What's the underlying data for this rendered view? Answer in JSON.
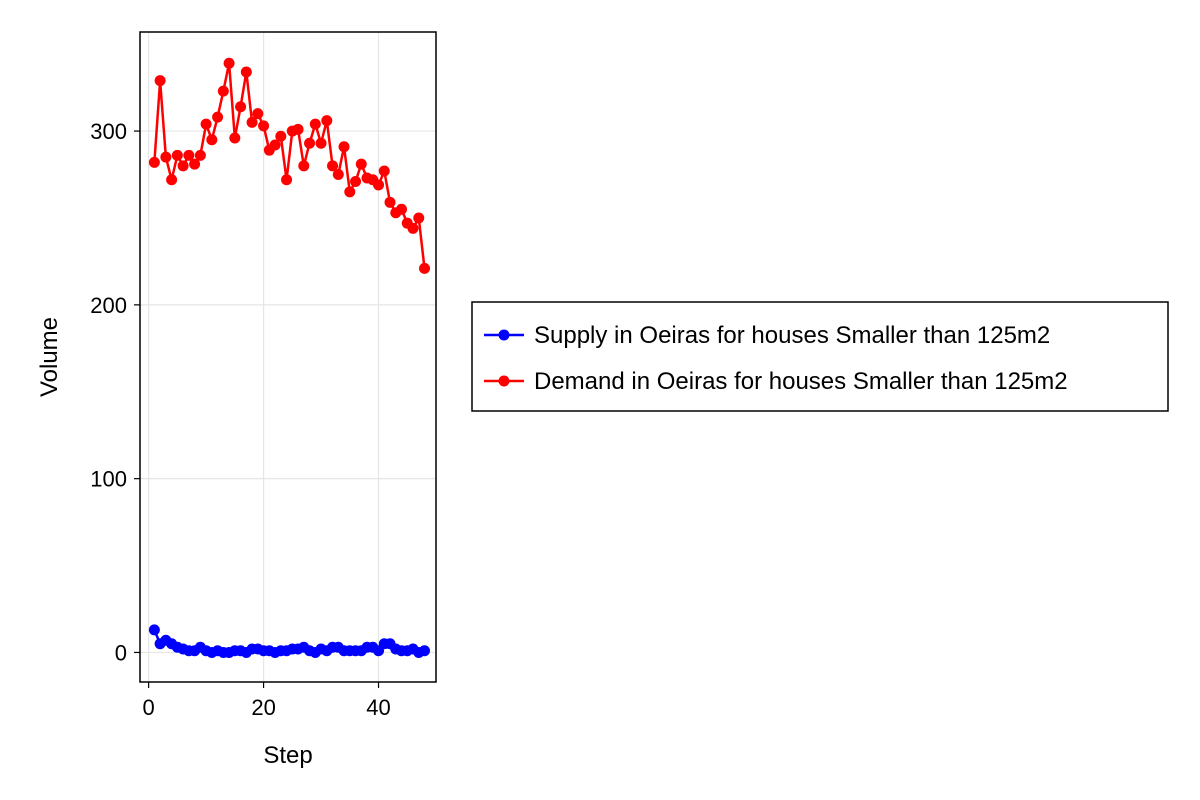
{
  "chart_data": {
    "type": "line",
    "xlabel": "Step",
    "ylabel": "Volume",
    "xlim": [
      -1.5,
      50
    ],
    "ylim": [
      -17,
      357
    ],
    "x_ticks": [
      0,
      20,
      40
    ],
    "y_ticks": [
      0,
      100,
      200,
      300
    ],
    "grid": true,
    "legend_position": "right",
    "x": [
      1,
      2,
      3,
      4,
      5,
      6,
      7,
      8,
      9,
      10,
      11,
      12,
      13,
      14,
      15,
      16,
      17,
      18,
      19,
      20,
      21,
      22,
      23,
      24,
      25,
      26,
      27,
      28,
      29,
      30,
      31,
      32,
      33,
      34,
      35,
      36,
      37,
      38,
      39,
      40,
      41,
      42,
      43,
      44,
      45,
      46,
      47,
      48
    ],
    "series": [
      {
        "name": "Supply in Oeiras for houses Smaller than 125m2",
        "color": "#0000ff",
        "values": [
          13,
          5,
          7,
          5,
          3,
          2,
          1,
          1,
          3,
          1,
          0,
          1,
          0,
          0,
          1,
          1,
          0,
          2,
          2,
          1,
          1,
          0,
          1,
          1,
          2,
          2,
          3,
          1,
          0,
          2,
          1,
          3,
          3,
          1,
          1,
          1,
          1,
          3,
          3,
          1,
          5,
          5,
          2,
          1,
          1,
          2,
          0,
          1
        ]
      },
      {
        "name": "Demand in Oeiras for houses Smaller than 125m2",
        "color": "#ff0000",
        "values": [
          282,
          329,
          285,
          272,
          286,
          280,
          286,
          281,
          286,
          304,
          295,
          308,
          323,
          339,
          296,
          314,
          334,
          305,
          310,
          303,
          289,
          292,
          297,
          272,
          300,
          301,
          280,
          293,
          304,
          293,
          306,
          280,
          275,
          291,
          265,
          271,
          281,
          273,
          272,
          269,
          277,
          259,
          253,
          255,
          247,
          244,
          250,
          221
        ]
      }
    ]
  }
}
